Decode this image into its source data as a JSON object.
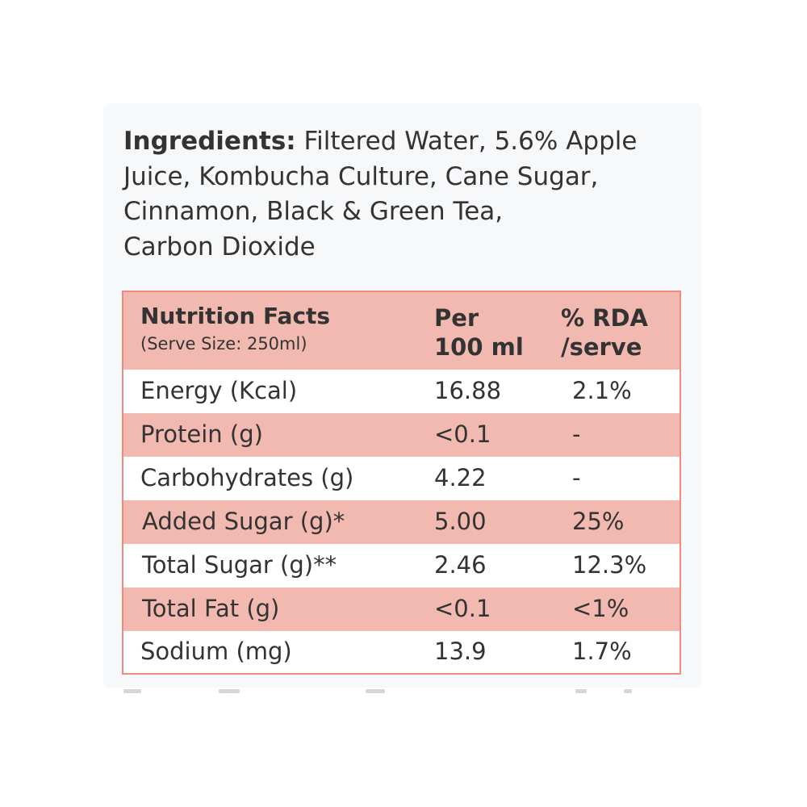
{
  "ingredients": {
    "label": "Ingredients:",
    "lines": [
      "Filtered Water, 5.6% Apple",
      "Juice, Kombucha Culture, Cane Sugar,",
      "Cinnamon, Black & Green Tea,",
      "Carbon Dioxide"
    ]
  },
  "nutrition": {
    "title": "Nutrition Facts",
    "serve_size": "(Serve Size: 250ml)",
    "col_per": [
      "Per",
      "100 ml"
    ],
    "col_rda": [
      "% RDA",
      "/serve"
    ],
    "rows": [
      {
        "name": "Energy (Kcal)",
        "per": "16.88",
        "rda": "2.1%"
      },
      {
        "name": "Protein (g)",
        "per": "<0.1",
        "rda": "-"
      },
      {
        "name": "Carbohydrates (g)",
        "per": "4.22",
        "rda": "-"
      },
      {
        "name": "Added Sugar (g)*",
        "per": "5.00",
        "rda": "25%"
      },
      {
        "name": "Total Sugar (g)**",
        "per": "2.46",
        "rda": "12.3%"
      },
      {
        "name": "Total Fat (g)",
        "per": "<0.1",
        "rda": "<1%"
      },
      {
        "name": "Sodium (mg)",
        "per": "13.9",
        "rda": "1.7%"
      }
    ]
  },
  "colors": {
    "accent_border": "#ee8c80",
    "row_shade": "#f2b9b1",
    "text": "#333333"
  }
}
